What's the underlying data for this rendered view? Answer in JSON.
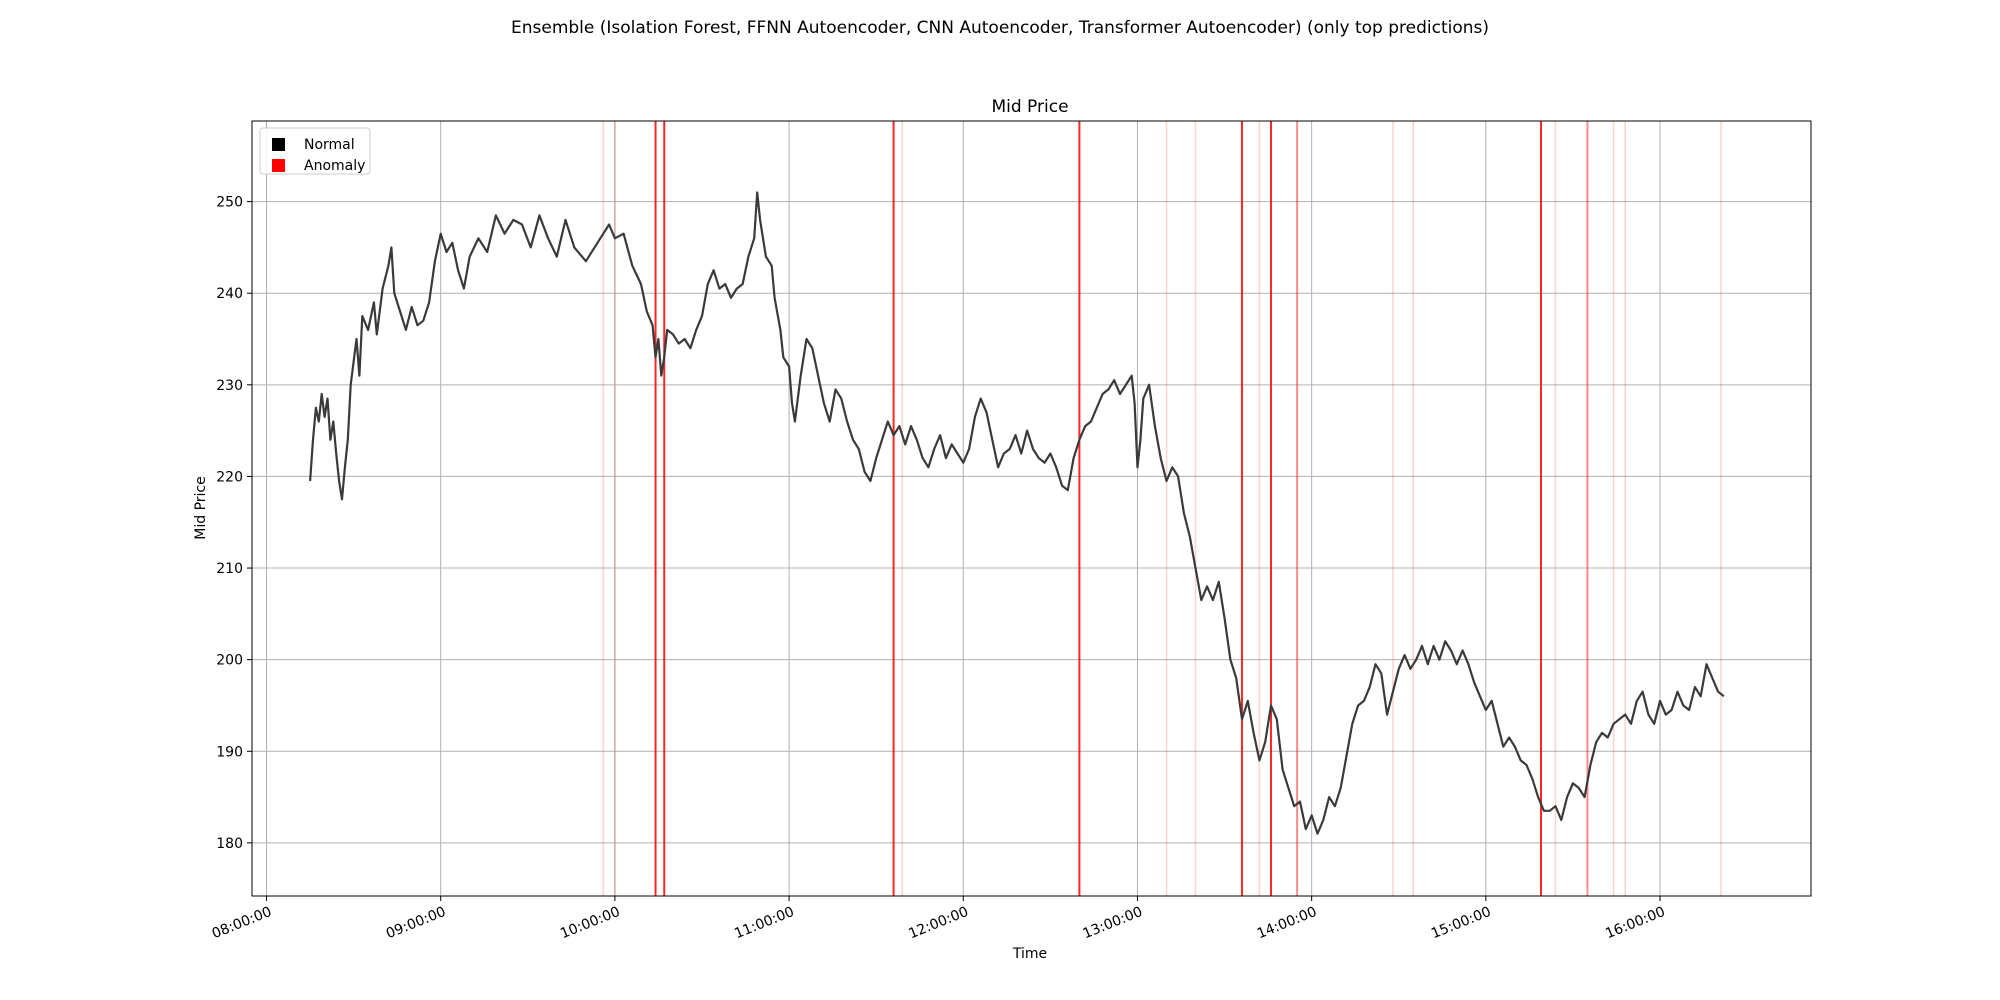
{
  "figure_title": "Ensemble (Isolation Forest, FFNN Autoencoder, CNN Autoencoder, Transformer Autoencoder) (only top predictions)",
  "chart_data": {
    "type": "line",
    "title": "Mid Price",
    "xlabel": "Time",
    "ylabel": "Mid Price",
    "x_axis": "time of day",
    "xlim": [
      "07:55:00",
      "16:52:00"
    ],
    "ylim": [
      174.2,
      258.8
    ],
    "x_ticks": [
      "08:00:00",
      "09:00:00",
      "10:00:00",
      "11:00:00",
      "12:00:00",
      "13:00:00",
      "14:00:00",
      "15:00:00",
      "16:00:00"
    ],
    "y_ticks": [
      180,
      190,
      200,
      210,
      220,
      230,
      240,
      250
    ],
    "grid": true,
    "legend": {
      "placement": "upper-left",
      "entries": [
        {
          "label": "Normal",
          "color": "#000000"
        },
        {
          "label": "Anomaly",
          "color": "#ff0000"
        }
      ]
    },
    "series": [
      {
        "name": "Normal",
        "color": "#3a3a3a",
        "points": [
          [
            "08:15",
            219.5
          ],
          [
            "08:16",
            224
          ],
          [
            "08:17",
            227.5
          ],
          [
            "08:18",
            226
          ],
          [
            "08:19",
            229
          ],
          [
            "08:20",
            226.5
          ],
          [
            "08:21",
            228.5
          ],
          [
            "08:22",
            224
          ],
          [
            "08:23",
            226
          ],
          [
            "08:24",
            222.5
          ],
          [
            "08:25",
            219.5
          ],
          [
            "08:26",
            217.5
          ],
          [
            "08:27",
            221
          ],
          [
            "08:28",
            224
          ],
          [
            "08:29",
            230
          ],
          [
            "08:30",
            232.5
          ],
          [
            "08:31",
            235
          ],
          [
            "08:32",
            231
          ],
          [
            "08:33",
            237.5
          ],
          [
            "08:35",
            236
          ],
          [
            "08:37",
            239
          ],
          [
            "08:38",
            235.5
          ],
          [
            "08:40",
            240.5
          ],
          [
            "08:42",
            243
          ],
          [
            "08:43",
            245
          ],
          [
            "08:44",
            240
          ],
          [
            "08:46",
            238
          ],
          [
            "08:48",
            236
          ],
          [
            "08:50",
            238.5
          ],
          [
            "08:52",
            236.5
          ],
          [
            "08:54",
            237
          ],
          [
            "08:56",
            239
          ],
          [
            "08:58",
            243.5
          ],
          [
            "09:00",
            246.5
          ],
          [
            "09:02",
            244.5
          ],
          [
            "09:04",
            245.5
          ],
          [
            "09:06",
            242.5
          ],
          [
            "09:08",
            240.5
          ],
          [
            "09:10",
            244
          ],
          [
            "09:13",
            246
          ],
          [
            "09:16",
            244.5
          ],
          [
            "09:19",
            248.5
          ],
          [
            "09:22",
            246.5
          ],
          [
            "09:25",
            248
          ],
          [
            "09:28",
            247.5
          ],
          [
            "09:31",
            245
          ],
          [
            "09:34",
            248.5
          ],
          [
            "09:37",
            246
          ],
          [
            "09:40",
            244
          ],
          [
            "09:43",
            248
          ],
          [
            "09:46",
            245
          ],
          [
            "09:50",
            243.5
          ],
          [
            "09:54",
            245.5
          ],
          [
            "09:58",
            247.5
          ],
          [
            "10:00",
            246
          ],
          [
            "10:03",
            246.5
          ],
          [
            "10:06",
            243
          ],
          [
            "10:09",
            241
          ],
          [
            "10:11",
            238
          ],
          [
            "10:13",
            236.5
          ],
          [
            "10:14",
            233
          ],
          [
            "10:15",
            235
          ],
          [
            "10:16",
            231
          ],
          [
            "10:17",
            233
          ],
          [
            "10:18",
            236
          ],
          [
            "10:20",
            235.5
          ],
          [
            "10:22",
            234.5
          ],
          [
            "10:24",
            235
          ],
          [
            "10:26",
            234
          ],
          [
            "10:28",
            236
          ],
          [
            "10:30",
            237.5
          ],
          [
            "10:32",
            241
          ],
          [
            "10:34",
            242.5
          ],
          [
            "10:36",
            240.5
          ],
          [
            "10:38",
            241
          ],
          [
            "10:40",
            239.5
          ],
          [
            "10:42",
            240.5
          ],
          [
            "10:44",
            241
          ],
          [
            "10:46",
            244
          ],
          [
            "10:48",
            246
          ],
          [
            "10:49",
            251
          ],
          [
            "10:50",
            248
          ],
          [
            "10:51",
            246
          ],
          [
            "10:52",
            244
          ],
          [
            "10:54",
            243
          ],
          [
            "10:55",
            239.5
          ],
          [
            "10:57",
            236
          ],
          [
            "10:58",
            233
          ],
          [
            "11:00",
            232
          ],
          [
            "11:01",
            228
          ],
          [
            "11:02",
            226
          ],
          [
            "11:04",
            231
          ],
          [
            "11:06",
            235
          ],
          [
            "11:08",
            234
          ],
          [
            "11:10",
            231
          ],
          [
            "11:12",
            228
          ],
          [
            "11:14",
            226
          ],
          [
            "11:16",
            229.5
          ],
          [
            "11:18",
            228.5
          ],
          [
            "11:20",
            226
          ],
          [
            "11:22",
            224
          ],
          [
            "11:24",
            223
          ],
          [
            "11:26",
            220.5
          ],
          [
            "11:28",
            219.5
          ],
          [
            "11:30",
            222
          ],
          [
            "11:32",
            224
          ],
          [
            "11:34",
            226
          ],
          [
            "11:36",
            224.5
          ],
          [
            "11:38",
            225.5
          ],
          [
            "11:40",
            223.5
          ],
          [
            "11:42",
            225.5
          ],
          [
            "11:44",
            224
          ],
          [
            "11:46",
            222
          ],
          [
            "11:48",
            221
          ],
          [
            "11:50",
            223
          ],
          [
            "11:52",
            224.5
          ],
          [
            "11:54",
            222
          ],
          [
            "11:56",
            223.5
          ],
          [
            "11:58",
            222.5
          ],
          [
            "12:00",
            221.5
          ],
          [
            "12:02",
            223
          ],
          [
            "12:04",
            226.5
          ],
          [
            "12:06",
            228.5
          ],
          [
            "12:08",
            227
          ],
          [
            "12:10",
            224
          ],
          [
            "12:12",
            221
          ],
          [
            "12:14",
            222.5
          ],
          [
            "12:16",
            223
          ],
          [
            "12:18",
            224.5
          ],
          [
            "12:20",
            222.5
          ],
          [
            "12:22",
            225
          ],
          [
            "12:24",
            223
          ],
          [
            "12:26",
            222
          ],
          [
            "12:28",
            221.5
          ],
          [
            "12:30",
            222.5
          ],
          [
            "12:32",
            221
          ],
          [
            "12:34",
            219
          ],
          [
            "12:36",
            218.5
          ],
          [
            "12:38",
            222
          ],
          [
            "12:40",
            224
          ],
          [
            "12:42",
            225.5
          ],
          [
            "12:44",
            226
          ],
          [
            "12:46",
            227.5
          ],
          [
            "12:48",
            229
          ],
          [
            "12:50",
            229.5
          ],
          [
            "12:52",
            230.5
          ],
          [
            "12:54",
            229
          ],
          [
            "12:56",
            230
          ],
          [
            "12:58",
            231
          ],
          [
            "12:59",
            228
          ],
          [
            "13:00",
            221
          ],
          [
            "13:01",
            224
          ],
          [
            "13:02",
            228.5
          ],
          [
            "13:04",
            230
          ],
          [
            "13:06",
            225.5
          ],
          [
            "13:08",
            222
          ],
          [
            "13:10",
            219.5
          ],
          [
            "13:12",
            221
          ],
          [
            "13:14",
            220
          ],
          [
            "13:16",
            216
          ],
          [
            "13:18",
            213.5
          ],
          [
            "13:20",
            210
          ],
          [
            "13:22",
            206.5
          ],
          [
            "13:24",
            208
          ],
          [
            "13:26",
            206.5
          ],
          [
            "13:28",
            208.5
          ],
          [
            "13:30",
            204.5
          ],
          [
            "13:32",
            200
          ],
          [
            "13:34",
            198
          ],
          [
            "13:36",
            193.5
          ],
          [
            "13:38",
            195.5
          ],
          [
            "13:40",
            192
          ],
          [
            "13:42",
            189
          ],
          [
            "13:44",
            191
          ],
          [
            "13:46",
            195
          ],
          [
            "13:48",
            193.5
          ],
          [
            "13:50",
            188
          ],
          [
            "13:52",
            186
          ],
          [
            "13:54",
            184
          ],
          [
            "13:56",
            184.5
          ],
          [
            "13:58",
            181.5
          ],
          [
            "14:00",
            183
          ],
          [
            "14:02",
            181
          ],
          [
            "14:04",
            182.5
          ],
          [
            "14:06",
            185
          ],
          [
            "14:08",
            184
          ],
          [
            "14:10",
            186
          ],
          [
            "14:12",
            189.5
          ],
          [
            "14:14",
            193
          ],
          [
            "14:16",
            195
          ],
          [
            "14:18",
            195.5
          ],
          [
            "14:20",
            197
          ],
          [
            "14:22",
            199.5
          ],
          [
            "14:24",
            198.5
          ],
          [
            "14:26",
            194
          ],
          [
            "14:28",
            196.5
          ],
          [
            "14:30",
            199
          ],
          [
            "14:32",
            200.5
          ],
          [
            "14:34",
            199
          ],
          [
            "14:36",
            200
          ],
          [
            "14:38",
            201.5
          ],
          [
            "14:40",
            199.5
          ],
          [
            "14:42",
            201.5
          ],
          [
            "14:44",
            200
          ],
          [
            "14:46",
            202
          ],
          [
            "14:48",
            201
          ],
          [
            "14:50",
            199.5
          ],
          [
            "14:52",
            201
          ],
          [
            "14:54",
            199.5
          ],
          [
            "14:56",
            197.5
          ],
          [
            "14:58",
            196
          ],
          [
            "15:00",
            194.5
          ],
          [
            "15:02",
            195.5
          ],
          [
            "15:04",
            193
          ],
          [
            "15:06",
            190.5
          ],
          [
            "15:08",
            191.5
          ],
          [
            "15:10",
            190.5
          ],
          [
            "15:12",
            189
          ],
          [
            "15:14",
            188.5
          ],
          [
            "15:16",
            187
          ],
          [
            "15:18",
            185
          ],
          [
            "15:20",
            183.5
          ],
          [
            "15:22",
            183.5
          ],
          [
            "15:24",
            184
          ],
          [
            "15:26",
            182.5
          ],
          [
            "15:28",
            185
          ],
          [
            "15:30",
            186.5
          ],
          [
            "15:32",
            186
          ],
          [
            "15:34",
            185
          ],
          [
            "15:36",
            188.5
          ],
          [
            "15:38",
            191
          ],
          [
            "15:40",
            192
          ],
          [
            "15:42",
            191.5
          ],
          [
            "15:44",
            193
          ],
          [
            "15:46",
            193.5
          ],
          [
            "15:48",
            194
          ],
          [
            "15:50",
            193
          ],
          [
            "15:52",
            195.5
          ],
          [
            "15:54",
            196.5
          ],
          [
            "15:56",
            194
          ],
          [
            "15:58",
            193
          ],
          [
            "16:00",
            195.5
          ],
          [
            "16:02",
            194
          ],
          [
            "16:04",
            194.5
          ],
          [
            "16:06",
            196.5
          ],
          [
            "16:08",
            195
          ],
          [
            "16:10",
            194.5
          ],
          [
            "16:12",
            197
          ],
          [
            "16:14",
            196
          ],
          [
            "16:16",
            199.5
          ],
          [
            "16:18",
            198
          ],
          [
            "16:20",
            196.5
          ],
          [
            "16:22",
            196
          ]
        ]
      }
    ],
    "anomaly_markers": [
      {
        "time": "09:56",
        "strength": "faint"
      },
      {
        "time": "10:00",
        "strength": "faint"
      },
      {
        "time": "10:14",
        "strength": "strong"
      },
      {
        "time": "10:17",
        "strength": "strong"
      },
      {
        "time": "11:36",
        "strength": "strong"
      },
      {
        "time": "11:39",
        "strength": "faint"
      },
      {
        "time": "12:40",
        "strength": "strong"
      },
      {
        "time": "13:10",
        "strength": "faint"
      },
      {
        "time": "13:20",
        "strength": "faint"
      },
      {
        "time": "13:36",
        "strength": "strong"
      },
      {
        "time": "13:42",
        "strength": "faint"
      },
      {
        "time": "13:46",
        "strength": "strong"
      },
      {
        "time": "13:55",
        "strength": "medium"
      },
      {
        "time": "14:28",
        "strength": "faint"
      },
      {
        "time": "14:35",
        "strength": "faint"
      },
      {
        "time": "15:19",
        "strength": "strong"
      },
      {
        "time": "15:24",
        "strength": "faint"
      },
      {
        "time": "15:35",
        "strength": "medium"
      },
      {
        "time": "15:44",
        "strength": "faint"
      },
      {
        "time": "15:48",
        "strength": "faint"
      },
      {
        "time": "16:21",
        "strength": "faint"
      }
    ]
  }
}
